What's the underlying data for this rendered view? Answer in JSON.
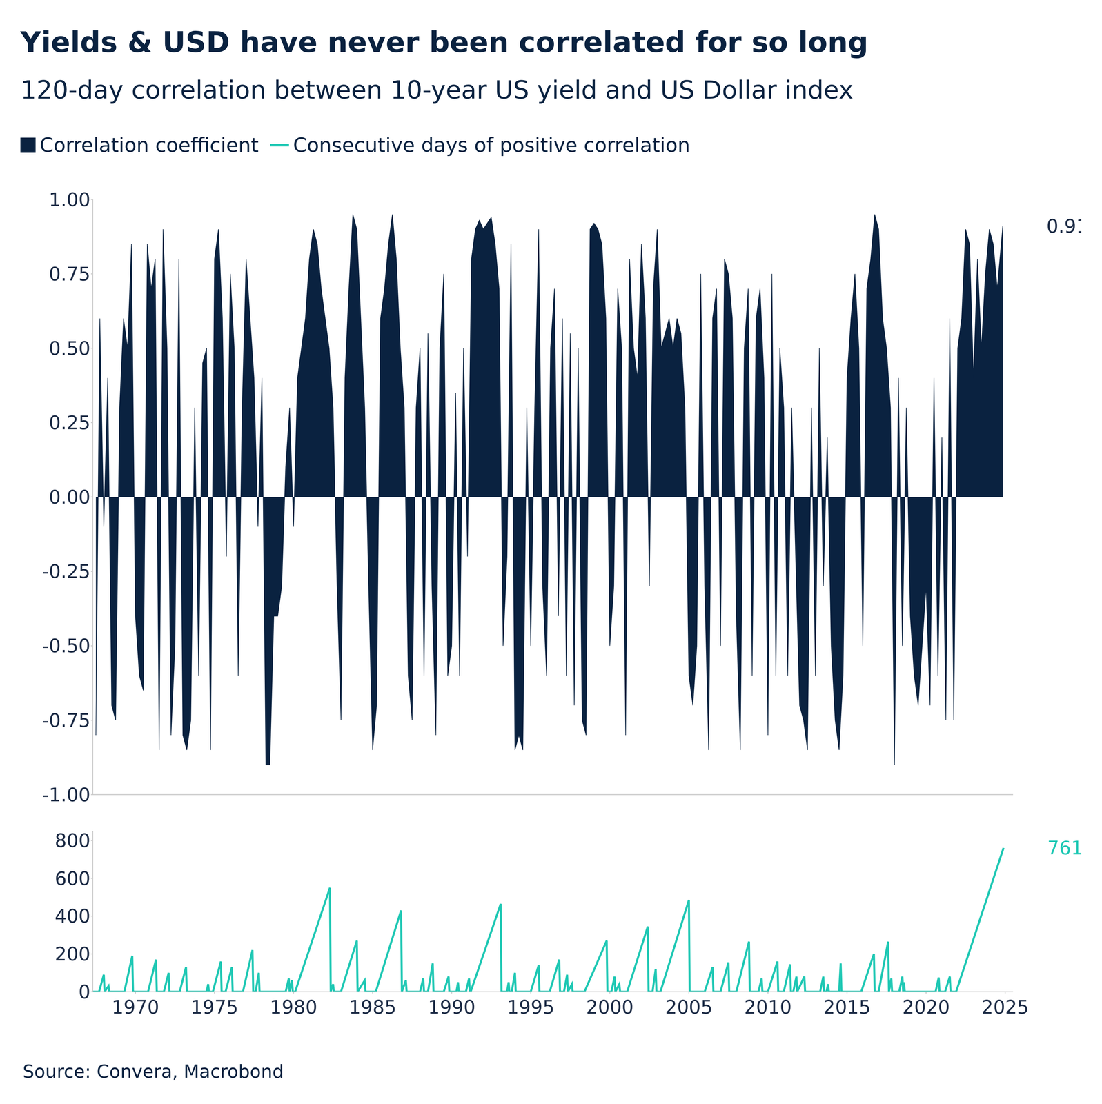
{
  "chart_data": [
    {
      "type": "area",
      "title": "Yields & USD have never been correlated for so long",
      "subtitle": "120-day correlation between 10-year US yield and US Dollar index",
      "source": "Source: Convera, Macrobond",
      "grid": false,
      "tick_labels": "y",
      "x": [
        1967.5,
        1967.75,
        1968,
        1968.25,
        1968.5,
        1968.75,
        1969,
        1969.25,
        1969.5,
        1969.75,
        1970,
        1970.25,
        1970.5,
        1970.75,
        1971,
        1971.25,
        1971.5,
        1971.75,
        1972,
        1972.25,
        1972.5,
        1972.75,
        1973,
        1973.25,
        1973.5,
        1973.75,
        1974,
        1974.25,
        1974.5,
        1974.75,
        1975,
        1975.25,
        1975.5,
        1975.75,
        1976,
        1976.25,
        1976.5,
        1976.75,
        1977,
        1977.25,
        1977.5,
        1977.75,
        1978,
        1978.25,
        1978.5,
        1978.75,
        1979,
        1979.25,
        1979.5,
        1979.75,
        1980,
        1980.25,
        1980.5,
        1980.75,
        1981,
        1981.25,
        1981.5,
        1981.75,
        1982,
        1982.25,
        1982.5,
        1982.75,
        1983,
        1983.25,
        1983.5,
        1983.75,
        1984,
        1984.25,
        1984.5,
        1984.75,
        1985,
        1985.25,
        1985.5,
        1985.75,
        1986,
        1986.25,
        1986.5,
        1986.75,
        1987,
        1987.25,
        1987.5,
        1987.75,
        1988,
        1988.25,
        1988.5,
        1988.75,
        1989,
        1989.25,
        1989.5,
        1989.75,
        1990,
        1990.25,
        1990.5,
        1990.75,
        1991,
        1991.25,
        1991.5,
        1991.75,
        1992,
        1992.25,
        1992.5,
        1992.75,
        1993,
        1993.25,
        1993.5,
        1993.75,
        1994,
        1994.25,
        1994.5,
        1994.75,
        1995,
        1995.25,
        1995.5,
        1995.75,
        1996,
        1996.25,
        1996.5,
        1996.75,
        1997,
        1997.25,
        1997.5,
        1997.75,
        1998,
        1998.25,
        1998.5,
        1998.75,
        1999,
        1999.25,
        1999.5,
        1999.75,
        2000,
        2000.25,
        2000.5,
        2000.75,
        2001,
        2001.25,
        2001.5,
        2001.75,
        2002,
        2002.25,
        2002.5,
        2002.75,
        2003,
        2003.25,
        2003.5,
        2003.75,
        2004,
        2004.25,
        2004.5,
        2004.75,
        2005,
        2005.25,
        2005.5,
        2005.75,
        2006,
        2006.25,
        2006.5,
        2006.75,
        2007,
        2007.25,
        2007.5,
        2007.75,
        2008,
        2008.25,
        2008.5,
        2008.75,
        2009,
        2009.25,
        2009.5,
        2009.75,
        2010,
        2010.25,
        2010.5,
        2010.75,
        2011,
        2011.25,
        2011.5,
        2011.75,
        2012,
        2012.25,
        2012.5,
        2012.75,
        2013,
        2013.25,
        2013.5,
        2013.75,
        2014,
        2014.25,
        2014.5,
        2014.75,
        2015,
        2015.25,
        2015.5,
        2015.75,
        2016,
        2016.25,
        2016.5,
        2016.75,
        2017,
        2017.25,
        2017.5,
        2017.75,
        2018,
        2018.25,
        2018.5,
        2018.75,
        2019,
        2019.25,
        2019.5,
        2019.75,
        2020,
        2020.25,
        2020.5,
        2020.75,
        2021,
        2021.25,
        2021.5,
        2021.75,
        2022,
        2022.25,
        2022.5,
        2022.75,
        2023,
        2023.25,
        2023.5,
        2023.75,
        2024,
        2024.25,
        2024.5,
        2024.85
      ],
      "xlim": [
        1967.3,
        2025.5
      ],
      "ylim": [
        -1,
        1
      ],
      "yticks": [
        {
          "value": -1,
          "label": "-1.00"
        },
        {
          "value": -0.75,
          "label": "-0.75"
        },
        {
          "value": -0.5,
          "label": "-0.50"
        },
        {
          "value": -0.25,
          "label": "-0.25"
        },
        {
          "value": 0,
          "label": "0.00"
        },
        {
          "value": 0.25,
          "label": "0.25"
        },
        {
          "value": 0.5,
          "label": "0.50"
        },
        {
          "value": 0.75,
          "label": "0.75"
        },
        {
          "value": 1,
          "label": "1.00"
        }
      ],
      "series": [
        {
          "name": "Correlation coefficient",
          "color": "#0a2240",
          "values": [
            -0.8,
            0.6,
            -0.1,
            0.4,
            -0.7,
            -0.75,
            0.3,
            0.6,
            0.5,
            0.85,
            -0.4,
            -0.6,
            -0.65,
            0.85,
            0.7,
            0.8,
            -0.85,
            0.9,
            0.5,
            -0.8,
            -0.5,
            0.8,
            -0.8,
            -0.85,
            -0.75,
            0.3,
            -0.6,
            0.45,
            0.5,
            -0.85,
            0.8,
            0.9,
            0.6,
            -0.2,
            0.75,
            0.5,
            -0.6,
            0.3,
            0.8,
            0.6,
            0.4,
            -0.1,
            0.4,
            -0.9,
            -0.9,
            -0.4,
            -0.4,
            -0.3,
            0.1,
            0.3,
            -0.1,
            0.4,
            0.5,
            0.6,
            0.8,
            0.9,
            0.85,
            0.7,
            0.6,
            0.5,
            0.3,
            -0.3,
            -0.75,
            0.4,
            0.7,
            0.95,
            0.9,
            0.6,
            0.3,
            -0.3,
            -0.85,
            -0.7,
            0.6,
            0.7,
            0.85,
            0.95,
            0.8,
            0.5,
            0.3,
            -0.6,
            -0.75,
            0.3,
            0.5,
            -0.6,
            0.55,
            -0.3,
            -0.8,
            0.5,
            0.75,
            -0.6,
            -0.5,
            0.35,
            -0.6,
            0.5,
            -0.2,
            0.8,
            0.9,
            0.93,
            0.9,
            0.92,
            0.94,
            0.85,
            0.7,
            -0.5,
            -0.2,
            0.85,
            -0.85,
            -0.8,
            -0.85,
            0.3,
            -0.5,
            0.3,
            0.9,
            -0.3,
            -0.6,
            0.5,
            0.7,
            -0.4,
            0.6,
            -0.6,
            0.55,
            -0.7,
            0.5,
            -0.75,
            -0.8,
            0.9,
            0.92,
            0.9,
            0.85,
            0.6,
            -0.5,
            -0.3,
            0.7,
            0.5,
            -0.8,
            0.8,
            0.5,
            0.4,
            0.85,
            0.6,
            -0.3,
            0.7,
            0.9,
            0.5,
            0.55,
            0.6,
            0.5,
            0.6,
            0.55,
            0.3,
            -0.6,
            -0.7,
            -0.5,
            0.75,
            -0.3,
            -0.85,
            0.6,
            0.7,
            -0.5,
            0.8,
            0.75,
            0.6,
            -0.4,
            -0.85,
            0.5,
            0.7,
            -0.6,
            0.6,
            0.7,
            0.4,
            -0.8,
            0.75,
            -0.6,
            0.5,
            0.3,
            -0.6,
            0.3,
            -0.2,
            -0.7,
            -0.75,
            -0.85,
            0.3,
            -0.6,
            0.5,
            -0.3,
            0.2,
            -0.5,
            -0.75,
            -0.85,
            -0.6,
            0.4,
            0.6,
            0.75,
            0.5,
            -0.5,
            0.7,
            0.8,
            0.95,
            0.9,
            0.6,
            0.5,
            0.3,
            -0.9,
            0.4,
            -0.5,
            0.3,
            -0.4,
            -0.6,
            -0.7,
            -0.5,
            -0.3,
            -0.7,
            0.4,
            -0.6,
            0.2,
            -0.75,
            0.6,
            -0.75,
            0.5,
            0.6,
            0.9,
            0.85,
            0.4,
            0.8,
            0.5,
            0.75,
            0.9,
            0.85,
            0.7,
            0.91
          ]
        }
      ]
    },
    {
      "type": "line",
      "grid": false,
      "x": [
        1967.3,
        1967.7,
        1968.0,
        1968.05,
        1968.3,
        1968.35,
        1969.3,
        1969.8,
        1969.85,
        1970.8,
        1971.3,
        1971.35,
        1971.8,
        1972.1,
        1972.15,
        1972.8,
        1973.2,
        1973.25,
        1974.5,
        1974.6,
        1974.65,
        1974.9,
        1975.4,
        1975.45,
        1975.7,
        1976.1,
        1976.15,
        1976.8,
        1977.4,
        1977.45,
        1977.6,
        1977.8,
        1977.85,
        1979.5,
        1979.7,
        1979.75,
        1979.9,
        1979.95,
        1980.1,
        1982.3,
        1982.35,
        1982.5,
        1982.55,
        1983.0,
        1984.0,
        1984.05,
        1984.5,
        1984.55,
        1985.2,
        1986.8,
        1986.85,
        1987.1,
        1987.15,
        1988.0,
        1988.2,
        1988.25,
        1988.5,
        1988.8,
        1988.85,
        1989.5,
        1989.8,
        1989.85,
        1990.3,
        1990.4,
        1990.45,
        1990.9,
        1991.1,
        1991.15,
        1991.2,
        1993.1,
        1993.15,
        1993.5,
        1993.6,
        1993.65,
        1993.8,
        1994.0,
        1994.05,
        1995.0,
        1995.5,
        1995.55,
        1996.2,
        1996.8,
        1996.85,
        1997.1,
        1997.3,
        1997.35,
        1997.6,
        1997.65,
        1998.4,
        1999.8,
        1999.85,
        2000.1,
        2000.3,
        2000.35,
        2000.6,
        2000.65,
        2001.1,
        2002.4,
        2002.45,
        2002.7,
        2002.9,
        2002.95,
        2003.2,
        2005.0,
        2005.05,
        2006.0,
        2006.5,
        2006.55,
        2007.0,
        2007.5,
        2007.55,
        2008.0,
        2008.8,
        2008.85,
        2009.4,
        2009.6,
        2009.65,
        2010.0,
        2010.6,
        2010.65,
        2011.0,
        2011.4,
        2011.45,
        2011.6,
        2011.8,
        2011.85,
        2012.3,
        2012.35,
        2013.3,
        2013.5,
        2013.55,
        2013.7,
        2013.8,
        2013.85,
        2014.5,
        2014.6,
        2014.65,
        2015.9,
        2016.7,
        2016.75,
        2017.0,
        2017.6,
        2017.65,
        2017.8,
        2017.85,
        2018.3,
        2018.5,
        2018.55,
        2018.6,
        2018.65,
        2020.6,
        2020.8,
        2020.85,
        2021.2,
        2021.5,
        2021.55,
        2021.9,
        2024.9
      ],
      "xlim": [
        1967.3,
        2025.5
      ],
      "xticks": [
        1970,
        1975,
        1980,
        1985,
        1990,
        1995,
        2000,
        2005,
        2010,
        2015,
        2020,
        2025
      ],
      "ylim": [
        0,
        850
      ],
      "yticks": [
        0,
        200,
        400,
        600,
        800
      ],
      "series": [
        {
          "name": "Consecutive days of positive correlation",
          "color": "#1fc8b4",
          "values": [
            0,
            0,
            90,
            0,
            30,
            0,
            0,
            190,
            0,
            0,
            170,
            0,
            0,
            100,
            0,
            0,
            130,
            0,
            0,
            40,
            0,
            0,
            160,
            0,
            0,
            130,
            0,
            0,
            220,
            0,
            0,
            100,
            0,
            0,
            70,
            0,
            60,
            0,
            0,
            550,
            0,
            40,
            0,
            0,
            270,
            0,
            60,
            0,
            0,
            430,
            0,
            60,
            0,
            0,
            70,
            0,
            0,
            150,
            0,
            0,
            80,
            0,
            0,
            50,
            0,
            0,
            70,
            0,
            0,
            465,
            0,
            0,
            50,
            0,
            0,
            100,
            0,
            0,
            140,
            0,
            0,
            170,
            0,
            0,
            90,
            0,
            40,
            0,
            0,
            270,
            0,
            0,
            80,
            0,
            40,
            0,
            0,
            345,
            0,
            0,
            120,
            0,
            0,
            485,
            0,
            0,
            130,
            0,
            0,
            155,
            0,
            0,
            265,
            0,
            0,
            70,
            0,
            0,
            160,
            0,
            0,
            145,
            0,
            0,
            80,
            0,
            80,
            0,
            0,
            80,
            0,
            0,
            40,
            0,
            0,
            150,
            0,
            0,
            200,
            0,
            0,
            265,
            0,
            70,
            0,
            0,
            80,
            0,
            50,
            0,
            0,
            75,
            0,
            0,
            80,
            0,
            0,
            761
          ]
        }
      ]
    }
  ]
}
